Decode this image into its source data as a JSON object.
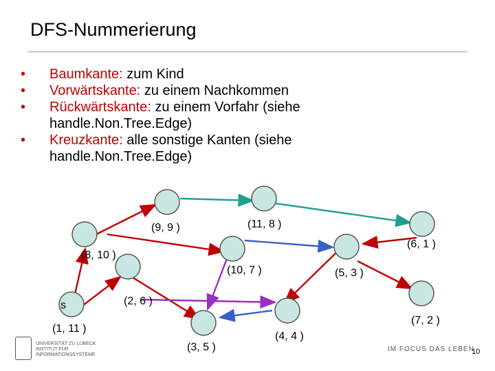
{
  "slide": {
    "title": "DFS-Nummerierung",
    "bullets": [
      {
        "term": "Baumkante:",
        "text": " zum Kind"
      },
      {
        "term": "Vorwärtskante:",
        "text": " zu einem Nachkommen"
      },
      {
        "term": "Rückwärtskante:",
        "text": " zu einem Vorfahr (siehe",
        "cont": "handle.Non.Tree.Edge)"
      },
      {
        "term": "Kreuzkante:",
        "text": " alle sonstige Kanten (siehe",
        "cont": "handle.Non.Tree.Edge)"
      }
    ],
    "footer": {
      "university": "UNIVERSITÄT ZU LÜBECK",
      "institute": "INSTITUT FÜR INFORMATIONSSYSTEME",
      "slogan": "IM FOCUS DAS LEBEN",
      "page_number": "10"
    }
  },
  "graph": {
    "colors": {
      "node_fill": "#c8e6e2",
      "node_stroke": "#555555",
      "tree_edge": "#c00000",
      "forward_edge": "#3a5fc7",
      "back_edge": "#20a090",
      "cross_edge": "#9b2fbf"
    },
    "nodes": [
      {
        "id": "s",
        "label": "s"
      },
      {
        "id": "n8_10",
        "label": "(8, 10 )"
      },
      {
        "id": "n9_9",
        "label": "(9, 9 )"
      },
      {
        "id": "n11_8",
        "label": "(11, 8 )"
      },
      {
        "id": "n10_7",
        "label": "(10, 7 )"
      },
      {
        "id": "n6_1",
        "label": "(6, 1 )"
      },
      {
        "id": "n2_6",
        "label": "(2, 6 )"
      },
      {
        "id": "n5_3",
        "label": "(5, 3 )"
      },
      {
        "id": "n3_5",
        "label": "(3, 5 )"
      },
      {
        "id": "n4_4",
        "label": "(4, 4 )"
      },
      {
        "id": "n7_2",
        "label": "(7, 2 )"
      },
      {
        "id": "n1_11",
        "label": "(1, 11 )"
      }
    ]
  }
}
